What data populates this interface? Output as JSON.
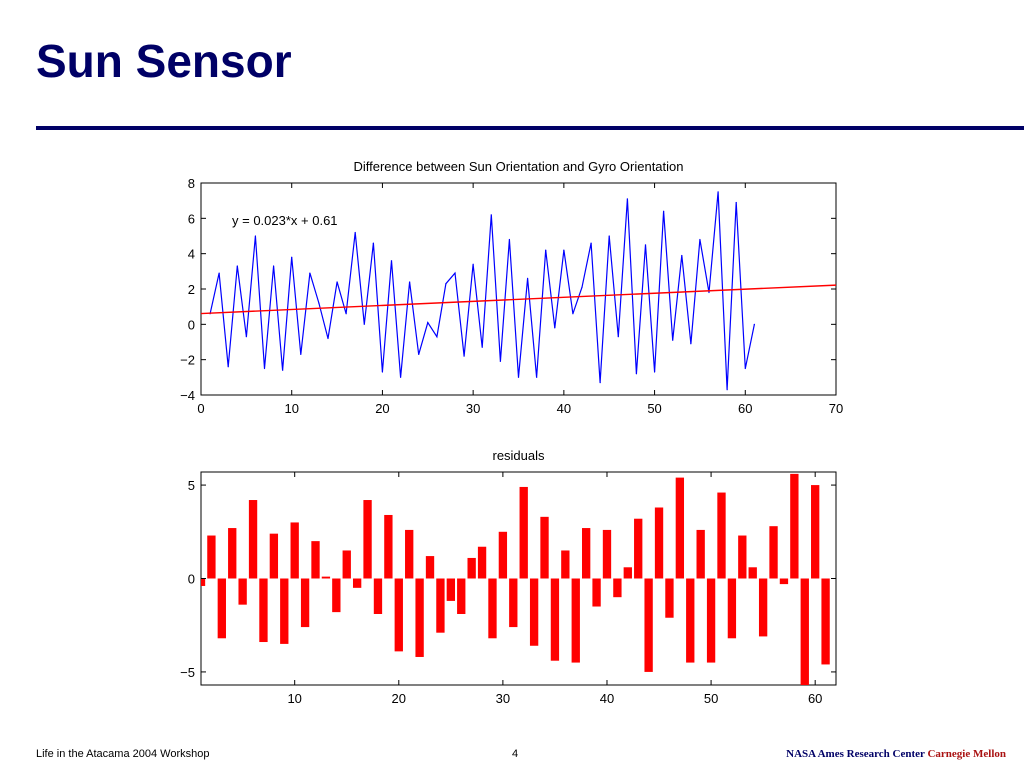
{
  "slide": {
    "title": "Sun Sensor"
  },
  "footer": {
    "left": "Life in the Atacama 2004 Workshop",
    "page": "4",
    "org1": "NASA Ames Research Center",
    "org2": "Carnegie Mellon"
  },
  "colors": {
    "title": "#000066",
    "series_line": "#0000ff",
    "fit_line": "#ff0000",
    "bars": "#ff0000"
  },
  "chart_data": [
    {
      "type": "line",
      "title": "Difference between Sun Orientation and Gyro Orientation",
      "annotation": "y = 0.023*x + 0.61",
      "xlim": [
        0,
        70
      ],
      "ylim": [
        -4,
        8
      ],
      "xticks": [
        0,
        10,
        20,
        30,
        40,
        50,
        60,
        70
      ],
      "yticks": [
        -4,
        -2,
        0,
        2,
        4,
        6,
        8
      ],
      "series": [
        {
          "x": [
            1,
            2,
            3,
            4,
            5,
            6,
            7,
            8,
            9,
            10,
            11,
            12,
            13,
            14,
            15,
            16,
            17,
            18,
            19,
            20,
            21,
            22,
            23,
            24,
            25,
            26,
            27,
            28,
            29,
            30,
            31,
            32,
            33,
            34,
            35,
            36,
            37,
            38,
            39,
            40,
            41,
            42,
            43,
            44,
            45,
            46,
            47,
            48,
            49,
            50,
            51,
            52,
            53,
            54,
            55,
            56,
            57,
            58,
            59,
            60,
            61
          ],
          "values": [
            0.6,
            2.9,
            -2.4,
            3.3,
            -0.7,
            5.0,
            -2.5,
            3.3,
            -2.6,
            3.8,
            -1.7,
            2.9,
            1.2,
            -0.8,
            2.4,
            0.6,
            5.2,
            0.0,
            4.6,
            -2.7,
            3.6,
            -3.0,
            2.4,
            -1.7,
            0.1,
            -0.7,
            2.3,
            2.9,
            -1.8,
            3.4,
            -1.3,
            6.2,
            -2.1,
            4.8,
            -3.0,
            2.6,
            -3.0,
            4.2,
            -0.2,
            4.2,
            0.6,
            2.1,
            4.6,
            -3.3,
            5.0,
            -0.7,
            7.1,
            -2.8,
            4.5,
            -2.7,
            6.4,
            -0.9,
            3.9,
            -1.1,
            4.8,
            1.8,
            7.5,
            -3.7,
            6.9,
            -2.5,
            0.0
          ]
        },
        {
          "x": [
            0,
            70
          ],
          "values": [
            0.61,
            2.22
          ]
        }
      ]
    },
    {
      "type": "bar",
      "title": "residuals",
      "xlim": [
        1,
        62
      ],
      "ylim": [
        -5.7,
        5.7
      ],
      "xticks": [
        10,
        20,
        30,
        40,
        50,
        60
      ],
      "yticks": [
        -5,
        0,
        5
      ],
      "x": [
        1,
        2,
        3,
        4,
        5,
        6,
        7,
        8,
        9,
        10,
        11,
        12,
        13,
        14,
        15,
        16,
        17,
        18,
        19,
        20,
        21,
        22,
        23,
        24,
        25,
        26,
        27,
        28,
        29,
        30,
        31,
        32,
        33,
        34,
        35,
        36,
        37,
        38,
        39,
        40,
        41,
        42,
        43,
        44,
        45,
        46,
        47,
        48,
        49,
        50,
        51,
        52,
        53,
        54,
        55,
        56,
        57,
        58,
        59,
        60,
        61
      ],
      "values": [
        -0.4,
        2.3,
        -3.2,
        2.7,
        -1.4,
        4.2,
        -3.4,
        2.4,
        -3.5,
        3.0,
        -2.6,
        2.0,
        0.1,
        -1.8,
        1.5,
        -0.5,
        4.2,
        -1.9,
        3.4,
        -3.9,
        2.6,
        -4.2,
        1.2,
        -2.9,
        -1.2,
        -1.9,
        1.1,
        1.7,
        -3.2,
        2.5,
        -2.6,
        4.9,
        -3.6,
        3.3,
        -4.4,
        1.5,
        -4.5,
        2.7,
        -1.5,
        2.6,
        -1.0,
        0.6,
        3.2,
        -5.0,
        3.8,
        -2.1,
        5.4,
        -4.5,
        2.6,
        -4.5,
        4.6,
        -3.2,
        2.3,
        0.6,
        -3.1,
        2.8,
        -0.3,
        5.6,
        -5.7,
        5.0,
        -4.6
      ]
    }
  ]
}
